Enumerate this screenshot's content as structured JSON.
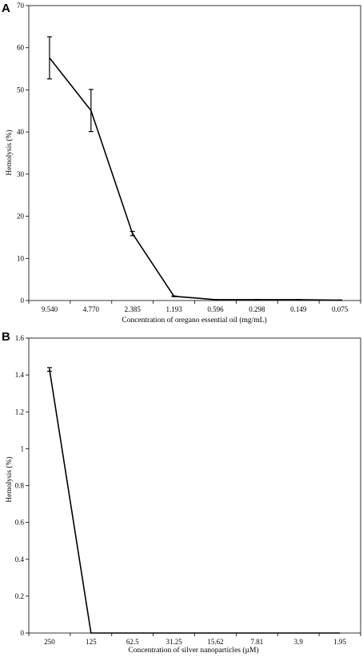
{
  "chart_data": [
    {
      "panel": "A",
      "type": "line",
      "xlabel": "Concentration of oregano essential oil (mg/mL)",
      "ylabel": "Hemolysis (%)",
      "categories": [
        "9.540",
        "4.770",
        "2.385",
        "1.193",
        "0.596",
        "0.298",
        "0.149",
        "0.075"
      ],
      "yticks": [
        "0",
        "10",
        "20",
        "30",
        "40",
        "50",
        "60",
        "70"
      ],
      "values": [
        57.6,
        45.1,
        15.9,
        1.0,
        0.2,
        0.2,
        0.2,
        0.1
      ],
      "errors": [
        5.0,
        5.0,
        0.5,
        0.1,
        0.05,
        0.05,
        0.05,
        0.05
      ],
      "ylim": [
        0,
        70
      ],
      "grid": false,
      "legend": "none"
    },
    {
      "panel": "B",
      "type": "line",
      "xlabel": "Concentration of silver nanoparticles (µM)",
      "ylabel": "Hemolysis (%)",
      "categories": [
        "250",
        "125",
        "62.5",
        "31.25",
        "15.62",
        "7.81",
        "3.9",
        "1.95"
      ],
      "yticks": [
        "0",
        "0.2",
        "0.4",
        "0.6",
        "0.8",
        "1",
        "1.2",
        "1.4",
        "1.6"
      ],
      "values": [
        1.43,
        0,
        0,
        0,
        0,
        0,
        0,
        0
      ],
      "errors": [
        0.01,
        0,
        0,
        0,
        0,
        0,
        0,
        0
      ],
      "ylim": [
        0,
        1.6
      ],
      "grid": false,
      "legend": "none"
    }
  ]
}
